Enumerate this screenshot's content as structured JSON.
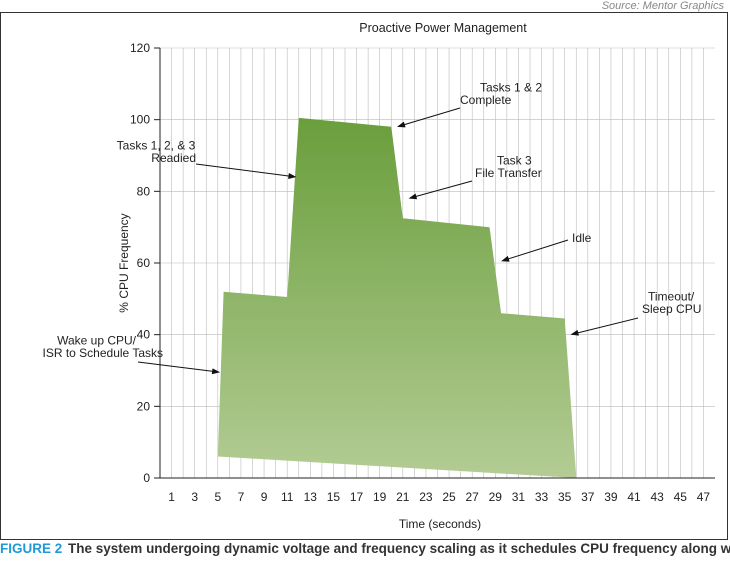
{
  "source": "Source: Mentor Graphics",
  "caption": {
    "figure": "FIGURE 2",
    "text": "The system undergoing dynamic voltage and frequency scaling as it schedules CPU frequency along with"
  },
  "colors": {
    "fill_top": "#6a9e3c",
    "fill_bottom": "#b3cc94",
    "grid": "#bbbbbb",
    "text": "#222222"
  },
  "chart_data": {
    "type": "area",
    "title": "Proactive Power Management",
    "xlabel": "Time (seconds)",
    "ylabel": "% CPU Frequency",
    "xlim": [
      0,
      48
    ],
    "ylim": [
      0,
      120
    ],
    "x_ticks": [
      1,
      3,
      5,
      7,
      9,
      11,
      13,
      15,
      17,
      19,
      21,
      23,
      25,
      27,
      29,
      31,
      33,
      35,
      37,
      39,
      41,
      43,
      45,
      47
    ],
    "y_ticks": [
      0,
      20,
      40,
      60,
      80,
      100,
      120
    ],
    "grid": true,
    "series": [
      {
        "upper": [
          [
            5,
            6
          ],
          [
            5.5,
            52
          ],
          [
            11,
            50.5
          ],
          [
            12,
            100.5
          ],
          [
            20,
            98
          ],
          [
            21,
            72.5
          ],
          [
            28.5,
            70
          ],
          [
            29.5,
            46
          ],
          [
            35,
            44.5
          ],
          [
            36,
            0
          ]
        ],
        "lower": [
          [
            5,
            6
          ],
          [
            36,
            0
          ]
        ]
      }
    ],
    "annotations": [
      {
        "lines": [
          "Tasks 1 & 2",
          "Complete"
        ],
        "point": [
          20.5,
          98
        ]
      },
      {
        "lines": [
          "Tasks 1, 2, & 3",
          "Readied"
        ],
        "point": [
          11.8,
          84
        ]
      },
      {
        "lines": [
          "Task 3",
          "File Transfer"
        ],
        "point": [
          21.5,
          78
        ]
      },
      {
        "lines": [
          "Idle"
        ],
        "point": [
          29.5,
          60.5
        ]
      },
      {
        "lines": [
          "Timeout/",
          "Sleep CPU"
        ],
        "point": [
          35.5,
          40
        ]
      },
      {
        "lines": [
          "Wake up CPU/",
          "ISR to Schedule Tasks"
        ],
        "point": [
          5.2,
          29.5
        ]
      }
    ]
  }
}
